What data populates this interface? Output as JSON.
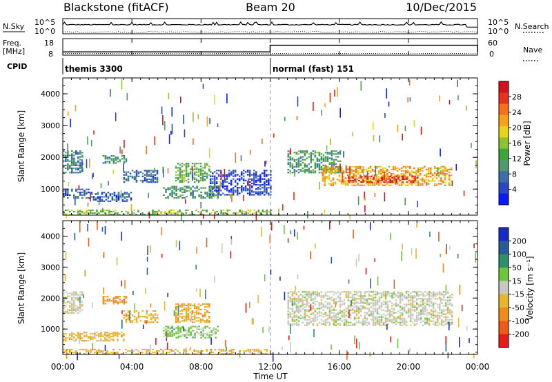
{
  "header": {
    "radar": "Blackstone (fitACF)",
    "beam": "Beam 20",
    "date": "10/Dec/2015"
  },
  "noise_panel": {
    "left_label": "N.Sky",
    "right_label": "N.Search",
    "left_ticks": [
      "10^5",
      "10^0"
    ],
    "right_ticks": [
      "10^5",
      "10^0"
    ]
  },
  "freq_panel": {
    "left_label_line1": "Freq.",
    "left_label_line2": "[MHz]",
    "right_label": "Nave",
    "left_ticks": [
      "18",
      "8"
    ],
    "right_ticks": [
      "60",
      "0"
    ]
  },
  "cpid_panel": {
    "label": "CPID",
    "modes": [
      {
        "name": "themis 3300",
        "start_hour": 0,
        "end_hour": 12
      },
      {
        "name": "normal (fast) 151",
        "start_hour": 12,
        "end_hour": 24
      }
    ]
  },
  "x_axis": {
    "title": "Time UT",
    "tick_labels": [
      "00:00",
      "04:00",
      "08:00",
      "12:00",
      "16:00",
      "20:00",
      "00:00"
    ]
  },
  "power_panel": {
    "y_title": "Slant Range [km]",
    "y_ticks": [
      "1000",
      "2000",
      "3000",
      "4000"
    ],
    "colorbar_title": "Power [dB]",
    "colorbar_ticks": [
      "4",
      "8",
      "12",
      "16",
      "20",
      "24",
      "28"
    ],
    "colorbar_colors": [
      "#0a1aff",
      "#2a47c8",
      "#3f6fa8",
      "#4f9a6a",
      "#3ca63a",
      "#8fc22e",
      "#e8d21a",
      "#f5a21a",
      "#f57018",
      "#e8301a",
      "#d8101a"
    ]
  },
  "velocity_panel": {
    "y_title": "Slant Range [km]",
    "y_ticks": [
      "1000",
      "2000",
      "3000",
      "4000"
    ],
    "colorbar_title": "Velocity [m s⁻¹]",
    "colorbar_ticks": [
      "200",
      "100",
      "50",
      "15",
      "-15",
      "-50",
      "-100",
      "-200"
    ],
    "colorbar_colors": [
      "#1a2ac8",
      "#2a5a9a",
      "#2f8f6a",
      "#6ac63a",
      "#c8c8c0",
      "#e8b62a",
      "#f08a18",
      "#f05a18",
      "#e81a1a"
    ]
  },
  "chart_data": [
    {
      "type": "line",
      "name": "noise",
      "x_unit": "hours UT",
      "series": [
        {
          "name": "N.Sky",
          "x": [
            0,
            24
          ],
          "y": [
            3,
            3
          ]
        },
        {
          "name": "N.Search",
          "x": [
            0,
            24
          ],
          "y": [
            0.2,
            0.2
          ]
        }
      ],
      "ylim": [
        "10^0",
        "10^5"
      ]
    },
    {
      "type": "line",
      "name": "frequency",
      "x_unit": "hours UT",
      "series": [
        {
          "name": "Freq.",
          "x": [
            0,
            12,
            12,
            24
          ],
          "y": [
            10,
            10,
            14,
            14
          ]
        },
        {
          "name": "Nave",
          "x": [
            0,
            24
          ],
          "y": [
            8,
            8
          ]
        }
      ],
      "ylim": [
        8,
        18
      ]
    },
    {
      "type": "heatmap",
      "name": "power",
      "x_unit": "hours UT",
      "xlim": [
        0,
        24
      ],
      "y_unit": "km",
      "ylim": [
        180,
        4500
      ],
      "clim": [
        0,
        30
      ],
      "features": [
        {
          "t0": 0.0,
          "t1": 1.2,
          "r0": 1500,
          "r1": 2200,
          "level": 8
        },
        {
          "t0": 0.0,
          "t1": 1.5,
          "r0": 700,
          "r1": 1000,
          "level": 6
        },
        {
          "t0": 1.5,
          "t1": 4.0,
          "r0": 600,
          "r1": 900,
          "level": 5
        },
        {
          "t0": 2.3,
          "t1": 3.7,
          "r0": 1800,
          "r1": 2050,
          "level": 10
        },
        {
          "t0": 3.5,
          "t1": 5.5,
          "r0": 1200,
          "r1": 1600,
          "level": 6
        },
        {
          "t0": 5.8,
          "t1": 9.0,
          "r0": 700,
          "r1": 1100,
          "level": 10
        },
        {
          "t0": 6.5,
          "t1": 8.5,
          "r0": 1200,
          "r1": 1800,
          "level": 12
        },
        {
          "t0": 8.5,
          "t1": 12.0,
          "r0": 800,
          "r1": 1600,
          "level": 4
        },
        {
          "t0": 13.0,
          "t1": 16.0,
          "r0": 1500,
          "r1": 2200,
          "level": 10
        },
        {
          "t0": 15.0,
          "t1": 22.5,
          "r0": 1100,
          "r1": 1700,
          "level": 20
        },
        {
          "t0": 16.5,
          "t1": 20.5,
          "r0": 1200,
          "r1": 1400,
          "level": 26
        },
        {
          "t0": 0.0,
          "t1": 12.0,
          "r0": 180,
          "r1": 350,
          "level": 14
        }
      ]
    },
    {
      "type": "heatmap",
      "name": "velocity",
      "x_unit": "hours UT",
      "xlim": [
        0,
        24
      ],
      "y_unit": "km",
      "ylim": [
        180,
        4500
      ],
      "clim": [
        -200,
        200
      ],
      "features": [
        {
          "t0": 0.0,
          "t1": 1.2,
          "r0": 1500,
          "r1": 2200,
          "value": 0
        },
        {
          "t0": 0.0,
          "t1": 3.5,
          "r0": 600,
          "r1": 900,
          "value": -40
        },
        {
          "t0": 2.3,
          "t1": 3.7,
          "r0": 1800,
          "r1": 2050,
          "value": -90
        },
        {
          "t0": 3.5,
          "t1": 5.5,
          "r0": 1200,
          "r1": 1600,
          "value": -50
        },
        {
          "t0": 5.8,
          "t1": 9.0,
          "r0": 700,
          "r1": 1100,
          "value": 40
        },
        {
          "t0": 6.5,
          "t1": 8.5,
          "r0": 1200,
          "r1": 1800,
          "value": -60
        },
        {
          "t0": 13.0,
          "t1": 22.5,
          "r0": 1100,
          "r1": 2200,
          "value": 0
        },
        {
          "t0": 0.0,
          "t1": 12.0,
          "r0": 180,
          "r1": 350,
          "value": -45
        }
      ]
    }
  ]
}
